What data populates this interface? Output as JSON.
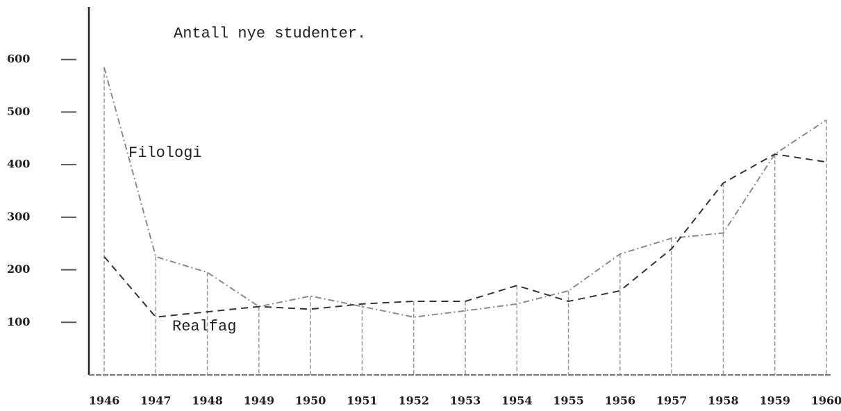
{
  "chart_data": {
    "type": "line",
    "title": "Antall nye studenter.",
    "categories": [
      "1946",
      "1947",
      "1948",
      "1949",
      "1950",
      "1951",
      "1952",
      "1953",
      "1954",
      "1955",
      "1956",
      "1957",
      "1958",
      "1959",
      "1960"
    ],
    "series": [
      {
        "name": "Filologi",
        "color": "#8a8a8a",
        "dash": "9 4 2 4",
        "values": [
          585,
          225,
          195,
          130,
          150,
          130,
          110,
          122,
          135,
          160,
          230,
          260,
          270,
          420,
          485
        ]
      },
      {
        "name": "Realfag",
        "color": "#333333",
        "dash": "10 7",
        "values": [
          225,
          110,
          120,
          130,
          125,
          135,
          140,
          140,
          170,
          140,
          160,
          240,
          365,
          420,
          405
        ]
      }
    ],
    "ylim": [
      0,
      700
    ],
    "yticks": [
      100,
      200,
      300,
      400,
      500,
      600
    ]
  }
}
